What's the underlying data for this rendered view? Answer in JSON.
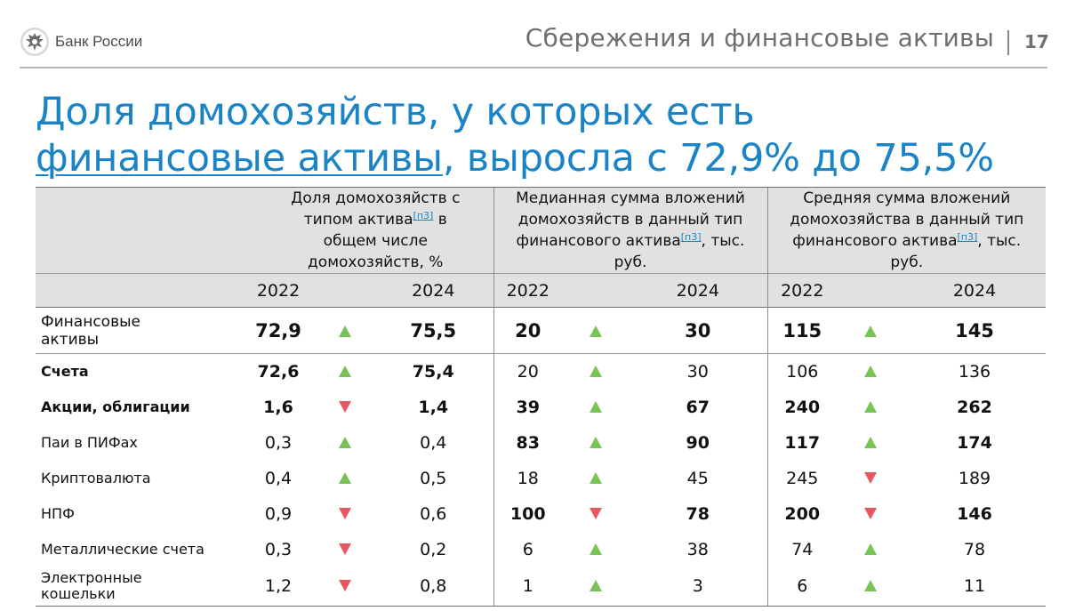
{
  "header": {
    "logo_text": "Банк России",
    "section_title": "Сбережения и финансовые активы",
    "page_number": "17"
  },
  "title": {
    "part1": "Доля домохозяйств, у которых есть",
    "link": "финансовые активы",
    "part2": ", выросла с 72,9% до 75,5%"
  },
  "table": {
    "col_headers": [
      {
        "pre": "Доля домохозяйств с типом актива",
        "ref": "[п3]",
        "post": " в общем числе домохозяйств, %"
      },
      {
        "pre": "Медианная сумма вложений домохозяйств  в данный тип финансового актива",
        "ref": "[п3]",
        "post": ", тыс. руб."
      },
      {
        "pre": "Средняя сумма вложений домохозяйства в данный тип финансового актива",
        "ref": "[п3]",
        "post": ", тыс. руб."
      }
    ],
    "years": [
      "2022",
      "2024",
      "2022",
      "2024",
      "2022",
      "2024"
    ],
    "rows": [
      {
        "label": "Финансовые активы",
        "label_bold": false,
        "total": true,
        "v": [
          "72,9",
          "75,5",
          "20",
          "30",
          "115",
          "145"
        ],
        "dir": [
          "up",
          "up",
          "up"
        ],
        "bold": [
          true,
          true,
          true
        ]
      },
      {
        "label": "Счета",
        "label_bold": true,
        "v": [
          "72,6",
          "75,4",
          "20",
          "30",
          "106",
          "136"
        ],
        "dir": [
          "up",
          "up",
          "up"
        ],
        "bold": [
          true,
          false,
          false
        ]
      },
      {
        "label": "Акции, облигации",
        "label_bold": true,
        "v": [
          "1,6",
          "1,4",
          "39",
          "67",
          "240",
          "262"
        ],
        "dir": [
          "down",
          "up",
          "up"
        ],
        "bold": [
          true,
          true,
          true
        ]
      },
      {
        "label": "Паи в ПИФах",
        "label_bold": false,
        "v": [
          "0,3",
          "0,4",
          "83",
          "90",
          "117",
          "174"
        ],
        "dir": [
          "up",
          "up",
          "up"
        ],
        "bold": [
          false,
          true,
          true
        ]
      },
      {
        "label": "Криптовалюта",
        "label_bold": false,
        "v": [
          "0,4",
          "0,5",
          "18",
          "45",
          "245",
          "189"
        ],
        "dir": [
          "up",
          "up",
          "down"
        ],
        "bold": [
          false,
          false,
          false
        ]
      },
      {
        "label": "НПФ",
        "label_bold": false,
        "v": [
          "0,9",
          "0,6",
          "100",
          "78",
          "200",
          "146"
        ],
        "dir": [
          "down",
          "down",
          "down"
        ],
        "bold": [
          false,
          true,
          true
        ]
      },
      {
        "label": "Металлические счета",
        "label_bold": false,
        "v": [
          "0,3",
          "0,2",
          "6",
          "38",
          "74",
          "78"
        ],
        "dir": [
          "down",
          "up",
          "up"
        ],
        "bold": [
          false,
          false,
          false
        ]
      },
      {
        "label": "Электронные кошельки",
        "label_bold": false,
        "v": [
          "1,2",
          "0,8",
          "1",
          "3",
          "6",
          "11"
        ],
        "dir": [
          "down",
          "up",
          "up"
        ],
        "bold": [
          false,
          false,
          false
        ]
      }
    ]
  },
  "colors": {
    "accent": "#1a84c7",
    "up": "#78c257",
    "down": "#e8575c",
    "header_bg": "#e1e1e1"
  }
}
